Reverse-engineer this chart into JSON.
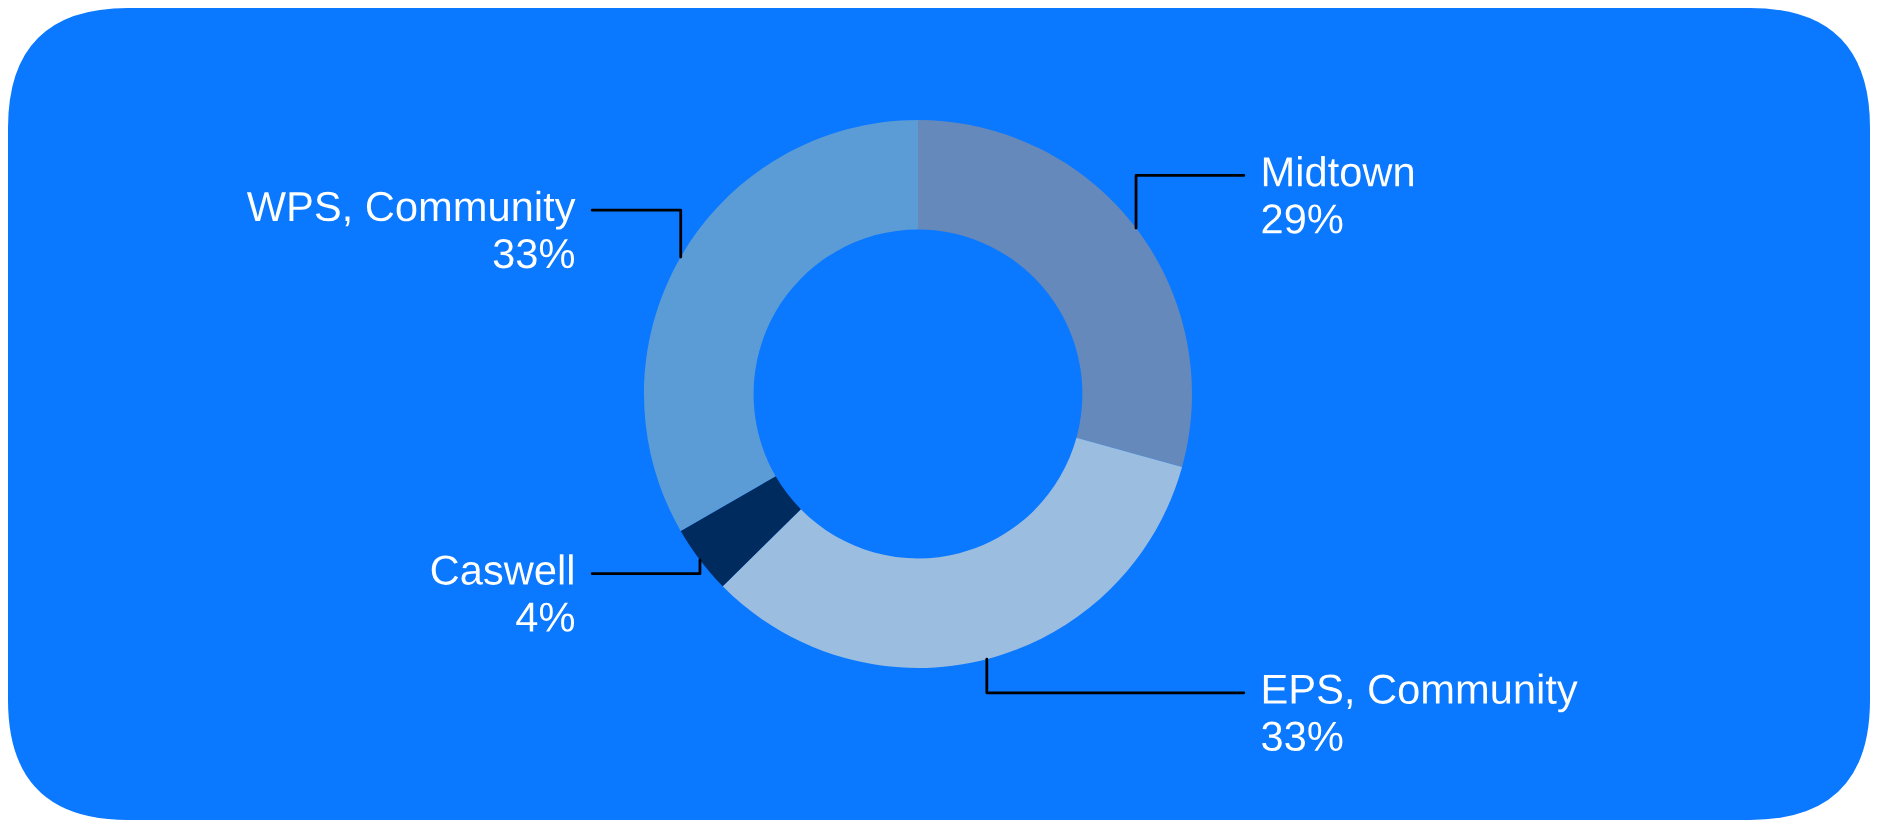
{
  "chart_data": {
    "type": "donut",
    "categories": [
      "Midtown",
      "EPS, Community",
      "Caswell",
      "WPS, Community"
    ],
    "values": [
      29,
      33,
      4,
      33
    ],
    "value_labels": [
      "29%",
      "33%",
      "4%",
      "33%"
    ],
    "colors": [
      "#6589bb",
      "#9bbddf",
      "#002b5e",
      "#5c9cd6"
    ],
    "legend": false
  }
}
